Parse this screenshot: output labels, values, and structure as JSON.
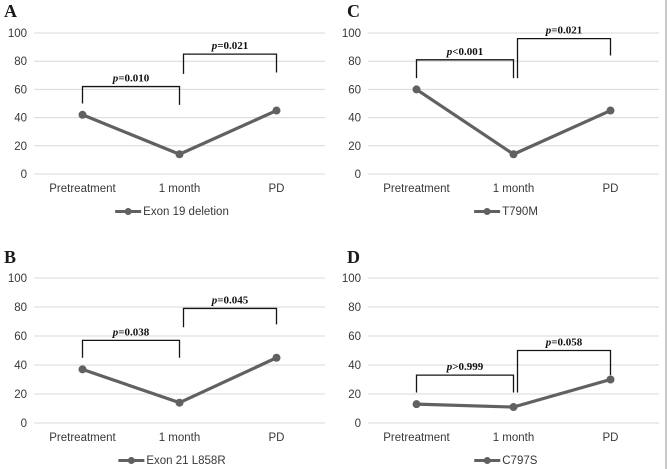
{
  "figure": {
    "background": "#ffffff",
    "border_right_color": "#c9c9c9"
  },
  "colors": {
    "line": "#616161",
    "marker": "#616161",
    "grid": "#d8d8d8",
    "bracket": "#141414",
    "axis_text": "#383838",
    "p_text": "#111111"
  },
  "chart_data": [
    {
      "panel": "A",
      "type": "line",
      "categories": [
        "Pretreatment",
        "1 month",
        "PD"
      ],
      "series": [
        {
          "name": "Exon 19 deletion",
          "values": [
            42,
            14,
            45
          ]
        }
      ],
      "ylim": [
        0,
        100
      ],
      "yticks": [
        0,
        20,
        40,
        60,
        80,
        100
      ],
      "grid": true,
      "legend_position": "bottom",
      "significance_brackets": [
        {
          "label": "p=0.010",
          "from": 0,
          "to": 1,
          "top": 62,
          "left_drop_to": 50,
          "right_drop_to": 49
        },
        {
          "label": "p=0.021",
          "from": 1,
          "to": 2,
          "top": 85,
          "left_drop_to": 71,
          "right_drop_to": 72
        }
      ]
    },
    {
      "panel": "B",
      "type": "line",
      "categories": [
        "Pretreatment",
        "1 month",
        "PD"
      ],
      "series": [
        {
          "name": "Exon 21 L858R",
          "values": [
            37,
            14,
            45
          ]
        }
      ],
      "ylim": [
        0,
        100
      ],
      "yticks": [
        0,
        20,
        40,
        60,
        80,
        100
      ],
      "grid": true,
      "legend_position": "bottom",
      "significance_brackets": [
        {
          "label": "p=0.038",
          "from": 0,
          "to": 1,
          "top": 57,
          "left_drop_to": 45,
          "right_drop_to": 45
        },
        {
          "label": "p=0.045",
          "from": 1,
          "to": 2,
          "top": 79,
          "left_drop_to": 66,
          "right_drop_to": 68
        }
      ]
    },
    {
      "panel": "C",
      "type": "line",
      "categories": [
        "Pretreatment",
        "1 month",
        "PD"
      ],
      "series": [
        {
          "name": "T790M",
          "values": [
            60,
            14,
            45
          ]
        }
      ],
      "ylim": [
        0,
        100
      ],
      "yticks": [
        0,
        20,
        40,
        60,
        80,
        100
      ],
      "grid": true,
      "legend_position": "bottom",
      "significance_brackets": [
        {
          "label": "p<0.001",
          "from": 0,
          "to": 1,
          "top": 81,
          "left_drop_to": 68,
          "right_drop_to": 68
        },
        {
          "label": "p=0.021",
          "from": 1,
          "to": 2,
          "top": 96,
          "left_drop_to": 68,
          "right_drop_to": 84
        }
      ]
    },
    {
      "panel": "D",
      "type": "line",
      "categories": [
        "Pretreatment",
        "1 month",
        "PD"
      ],
      "series": [
        {
          "name": "C797S",
          "values": [
            13,
            11,
            30
          ]
        }
      ],
      "ylim": [
        0,
        100
      ],
      "yticks": [
        0,
        20,
        40,
        60,
        80,
        100
      ],
      "grid": true,
      "legend_position": "bottom",
      "significance_brackets": [
        {
          "label": "p>0.999",
          "from": 0,
          "to": 1,
          "top": 33,
          "left_drop_to": 21,
          "right_drop_to": 21
        },
        {
          "label": "p=0.058",
          "from": 1,
          "to": 2,
          "top": 50,
          "left_drop_to": 21,
          "right_drop_to": 33
        }
      ]
    }
  ]
}
